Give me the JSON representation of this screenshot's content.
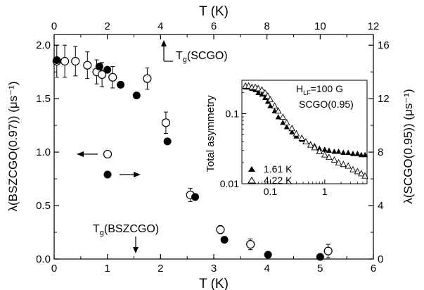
{
  "chart_data": [
    {
      "type": "scatter",
      "title": "",
      "xlabel": "T (K)",
      "x2label": "T (K)",
      "ylabel_left": "λ(BSZCGO(0.97)) (μs⁻¹)",
      "ylabel_right": "λ(SCGO(0.95)) (μs⁻¹)",
      "xlim": [
        0,
        6
      ],
      "x2lim": [
        0,
        12
      ],
      "ylim_left": [
        0,
        2.1
      ],
      "ylim_right": [
        0,
        16.8
      ],
      "x_ticks": [
        "0",
        "1",
        "2",
        "3",
        "4",
        "5",
        "6"
      ],
      "x2_ticks": [
        "0",
        "2",
        "4",
        "6",
        "8",
        "10",
        "12"
      ],
      "yleft_ticks": [
        "0.0",
        "0.5",
        "1.0",
        "1.5",
        "2.0"
      ],
      "yright_ticks": [
        "0",
        "4",
        "8",
        "12",
        "16"
      ],
      "grid": false,
      "series": [
        {
          "marker": "filled-circle",
          "axis": "bottom-left",
          "points": [
            {
              "x": 0.05,
              "y": 1.86
            },
            {
              "x": 0.85,
              "y": 1.8
            },
            {
              "x": 1.0,
              "y": 1.77
            },
            {
              "x": 1.25,
              "y": 1.63
            },
            {
              "x": 1.55,
              "y": 1.53
            },
            {
              "x": 2.13,
              "y": 1.1
            },
            {
              "x": 2.65,
              "y": 0.58
            },
            {
              "x": 3.2,
              "y": 0.18
            },
            {
              "x": 4.02,
              "y": 0.04
            },
            {
              "x": 5.0,
              "y": 0.02
            }
          ]
        },
        {
          "marker": "open-circle",
          "axis": "top-right",
          "points": [
            {
              "x": 0.1,
              "y": 14.8,
              "err": 1.2
            },
            {
              "x": 0.4,
              "y": 14.8,
              "err": 1.2
            },
            {
              "x": 0.8,
              "y": 14.8,
              "err": 1.1
            },
            {
              "x": 1.25,
              "y": 14.5,
              "err": 1.0
            },
            {
              "x": 1.6,
              "y": 14.0,
              "err": 0.9
            },
            {
              "x": 1.8,
              "y": 13.8,
              "err": 0.9
            },
            {
              "x": 2.2,
              "y": 13.6,
              "err": 0.8
            },
            {
              "x": 3.5,
              "y": 13.5,
              "err": 0.8
            },
            {
              "x": 4.2,
              "y": 10.2,
              "err": 0.8
            },
            {
              "x": 5.12,
              "y": 4.8,
              "err": 0.5
            },
            {
              "x": 6.25,
              "y": 2.2,
              "err": 0.3
            },
            {
              "x": 7.38,
              "y": 1.1,
              "err": 0.4
            },
            {
              "x": 10.3,
              "y": 0.6,
              "err": 0.5
            }
          ]
        }
      ],
      "annotations": {
        "tg_scgo": "T",
        "tg_scgo_sub": "g",
        "tg_scgo_rest": "(SCGO)",
        "tg_bszcgo": "T",
        "tg_bszcgo_sub": "g",
        "tg_bszcgo_rest": "(BSZCGO)"
      }
    },
    {
      "type": "scatter",
      "role": "inset",
      "ylabel": "Total asymmetry",
      "x_scale": "log",
      "y_scale": "log",
      "xlim": [
        0.03,
        6
      ],
      "ylim": [
        0.01,
        0.3
      ],
      "x_ticks": [
        {
          "value": 0.1,
          "label": "0.1"
        },
        {
          "value": 1,
          "label": "1"
        }
      ],
      "y_ticks": [
        {
          "value": 0.01,
          "label": "0.01"
        },
        {
          "value": 0.1,
          "label": "0.1"
        }
      ],
      "text_field": "H",
      "text_field_sub": "LF",
      "text_field_rest": "=100 G",
      "text_sample": "SCGO(0.95)",
      "series": [
        {
          "name": "1.61 K",
          "marker": "filled-triangle",
          "points": [
            [
              0.035,
              0.24
            ],
            [
              0.04,
              0.24
            ],
            [
              0.046,
              0.23
            ],
            [
              0.053,
              0.22
            ],
            [
              0.06,
              0.2
            ],
            [
              0.07,
              0.19
            ],
            [
              0.08,
              0.17
            ],
            [
              0.09,
              0.15
            ],
            [
              0.1,
              0.13
            ],
            [
              0.12,
              0.11
            ],
            [
              0.14,
              0.09
            ],
            [
              0.17,
              0.075
            ],
            [
              0.2,
              0.065
            ],
            [
              0.25,
              0.055
            ],
            [
              0.3,
              0.048
            ],
            [
              0.38,
              0.043
            ],
            [
              0.45,
              0.04
            ],
            [
              0.55,
              0.037
            ],
            [
              0.65,
              0.035
            ],
            [
              0.8,
              0.032
            ],
            [
              1.0,
              0.031
            ],
            [
              1.2,
              0.03
            ],
            [
              1.5,
              0.029
            ],
            [
              1.8,
              0.029
            ],
            [
              2.2,
              0.028
            ],
            [
              2.7,
              0.028
            ],
            [
              3.3,
              0.027
            ],
            [
              4.0,
              0.027
            ],
            [
              4.7,
              0.026
            ],
            [
              5.5,
              0.026
            ]
          ]
        },
        {
          "name": "4.22 K",
          "marker": "open-triangle",
          "points": [
            [
              0.035,
              0.25
            ],
            [
              0.04,
              0.25
            ],
            [
              0.046,
              0.24
            ],
            [
              0.053,
              0.24
            ],
            [
              0.06,
              0.23
            ],
            [
              0.07,
              0.22
            ],
            [
              0.08,
              0.2
            ],
            [
              0.09,
              0.18
            ],
            [
              0.1,
              0.16
            ],
            [
              0.12,
              0.13
            ],
            [
              0.14,
              0.11
            ],
            [
              0.17,
              0.09
            ],
            [
              0.2,
              0.075
            ],
            [
              0.25,
              0.062
            ],
            [
              0.3,
              0.052
            ],
            [
              0.38,
              0.045
            ],
            [
              0.45,
              0.04
            ],
            [
              0.55,
              0.036
            ],
            [
              0.65,
              0.033
            ],
            [
              0.8,
              0.029
            ],
            [
              1.0,
              0.026
            ],
            [
              1.2,
              0.024
            ],
            [
              1.5,
              0.022
            ],
            [
              1.8,
              0.02
            ],
            [
              2.2,
              0.019
            ],
            [
              2.7,
              0.018
            ],
            [
              3.3,
              0.016
            ],
            [
              4.0,
              0.015
            ],
            [
              4.7,
              0.014
            ],
            [
              5.5,
              0.013
            ]
          ]
        }
      ]
    }
  ]
}
